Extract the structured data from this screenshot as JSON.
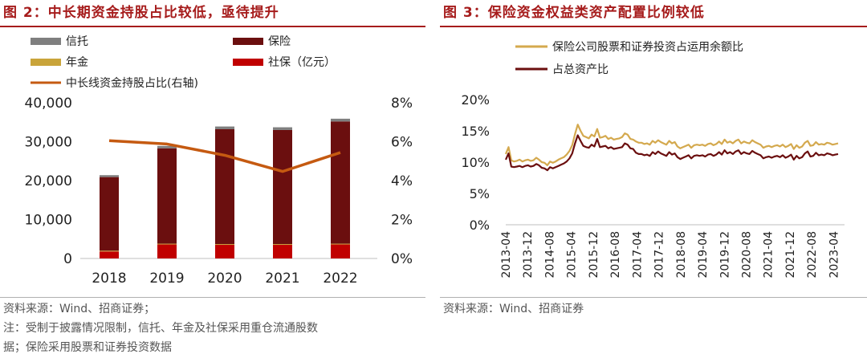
{
  "left": {
    "title": "图 2：中长期资金持股占比较低，亟待提升",
    "legend": {
      "trust": "信托",
      "insurance": "保险",
      "annuity": "年金",
      "social_security": "社保（亿元）",
      "ratio_line": "中长线资金持股占比(右轴)"
    },
    "source": "资料来源：Wind、招商证券；",
    "note_line1": "注：受制于披露情况限制，信托、年金及社保采用重仓流通股数",
    "note_line2": "据；保险采用股票和证券投资数据"
  },
  "right": {
    "title": "图 3：保险资金权益类资产配置比例较低",
    "legend": {
      "series1": "保险公司股票和证券投资占运用余额比",
      "series2": "占总资产比"
    },
    "source": "资料来源：Wind、招商证券"
  },
  "colors": {
    "title_red": "#a61c1c",
    "trust": "#7f7f7f",
    "insurance": "#6b0f0f",
    "annuity": "#c9a43a",
    "social_security": "#c00000",
    "ratio_line": "#c55a11",
    "series1": "#d4a94e",
    "series2": "#6b0f0f"
  },
  "chart_data": [
    {
      "type": "bar",
      "stacked": true,
      "categories": [
        "2018",
        "2019",
        "2020",
        "2021",
        "2022"
      ],
      "y_ticks": [
        "0",
        "10,000",
        "20,000",
        "30,000",
        "40,000"
      ],
      "y2_ticks": [
        "0%",
        "2%",
        "4%",
        "6%",
        "8%"
      ],
      "ylim": [
        0,
        40000
      ],
      "y2lim": [
        0,
        0.08
      ],
      "series": [
        {
          "name": "社保（亿元）",
          "values": [
            1800,
            3600,
            3500,
            3500,
            3600
          ]
        },
        {
          "name": "年金",
          "values": [
            200,
            200,
            200,
            200,
            200
          ]
        },
        {
          "name": "保险",
          "values": [
            18900,
            24500,
            29500,
            29300,
            31400
          ]
        },
        {
          "name": "信托",
          "values": [
            500,
            600,
            700,
            700,
            700
          ]
        }
      ],
      "line_series": {
        "name": "中长线资金持股占比(右轴)",
        "values": [
          0.0605,
          0.0588,
          0.053,
          0.0447,
          0.0544
        ]
      },
      "grid": false,
      "legend_position": "top"
    },
    {
      "type": "line",
      "x_ticks": [
        "2013-04",
        "2013-12",
        "2014-08",
        "2015-04",
        "2015-12",
        "2016-08",
        "2017-04",
        "2017-12",
        "2018-08",
        "2019-04",
        "2019-12",
        "2020-08",
        "2021-04",
        "2021-12",
        "2022-08",
        "2023-04"
      ],
      "y_ticks": [
        "0%",
        "5%",
        "10%",
        "15%",
        "20%"
      ],
      "ylim": [
        0,
        0.2
      ],
      "grid": false,
      "legend_position": "top-left",
      "series": [
        {
          "name": "保险公司股票和证券投资占运用余额比",
          "values": [
            0.113,
            0.124,
            0.103,
            0.101,
            0.102,
            0.104,
            0.101,
            0.103,
            0.104,
            0.102,
            0.103,
            0.107,
            0.104,
            0.1,
            0.099,
            0.095,
            0.101,
            0.099,
            0.101,
            0.104,
            0.106,
            0.108,
            0.112,
            0.118,
            0.127,
            0.145,
            0.16,
            0.15,
            0.142,
            0.14,
            0.138,
            0.144,
            0.141,
            0.153,
            0.139,
            0.14,
            0.142,
            0.137,
            0.139,
            0.136,
            0.137,
            0.138,
            0.14,
            0.146,
            0.144,
            0.137,
            0.136,
            0.133,
            0.131,
            0.131,
            0.129,
            0.13,
            0.128,
            0.134,
            0.131,
            0.135,
            0.132,
            0.13,
            0.128,
            0.134,
            0.13,
            0.132,
            0.125,
            0.122,
            0.124,
            0.126,
            0.128,
            0.123,
            0.127,
            0.128,
            0.127,
            0.128,
            0.126,
            0.129,
            0.13,
            0.127,
            0.129,
            0.133,
            0.129,
            0.136,
            0.131,
            0.133,
            0.13,
            0.134,
            0.136,
            0.13,
            0.133,
            0.131,
            0.13,
            0.135,
            0.132,
            0.13,
            0.128,
            0.123,
            0.125,
            0.126,
            0.124,
            0.126,
            0.127,
            0.125,
            0.128,
            0.124,
            0.126,
            0.129,
            0.121,
            0.127,
            0.123,
            0.125,
            0.131,
            0.134,
            0.126,
            0.127,
            0.132,
            0.128,
            0.129,
            0.128,
            0.131,
            0.13,
            0.128,
            0.129,
            0.13
          ]
        },
        {
          "name": "占总资产比",
          "values": [
            0.104,
            0.114,
            0.093,
            0.092,
            0.093,
            0.094,
            0.092,
            0.094,
            0.095,
            0.093,
            0.094,
            0.097,
            0.095,
            0.091,
            0.09,
            0.087,
            0.092,
            0.09,
            0.092,
            0.094,
            0.096,
            0.098,
            0.101,
            0.106,
            0.114,
            0.13,
            0.143,
            0.134,
            0.126,
            0.124,
            0.123,
            0.128,
            0.125,
            0.137,
            0.124,
            0.125,
            0.126,
            0.122,
            0.124,
            0.121,
            0.122,
            0.123,
            0.124,
            0.13,
            0.128,
            0.122,
            0.121,
            0.115,
            0.113,
            0.113,
            0.111,
            0.112,
            0.11,
            0.116,
            0.113,
            0.117,
            0.114,
            0.112,
            0.11,
            0.116,
            0.112,
            0.114,
            0.108,
            0.105,
            0.107,
            0.109,
            0.111,
            0.106,
            0.11,
            0.111,
            0.11,
            0.111,
            0.109,
            0.112,
            0.113,
            0.11,
            0.112,
            0.116,
            0.112,
            0.119,
            0.114,
            0.116,
            0.113,
            0.117,
            0.119,
            0.113,
            0.116,
            0.114,
            0.113,
            0.118,
            0.115,
            0.113,
            0.111,
            0.106,
            0.108,
            0.109,
            0.107,
            0.109,
            0.11,
            0.108,
            0.111,
            0.107,
            0.109,
            0.112,
            0.104,
            0.11,
            0.106,
            0.108,
            0.114,
            0.117,
            0.109,
            0.11,
            0.115,
            0.111,
            0.112,
            0.111,
            0.114,
            0.113,
            0.111,
            0.112,
            0.113
          ]
        }
      ]
    }
  ]
}
